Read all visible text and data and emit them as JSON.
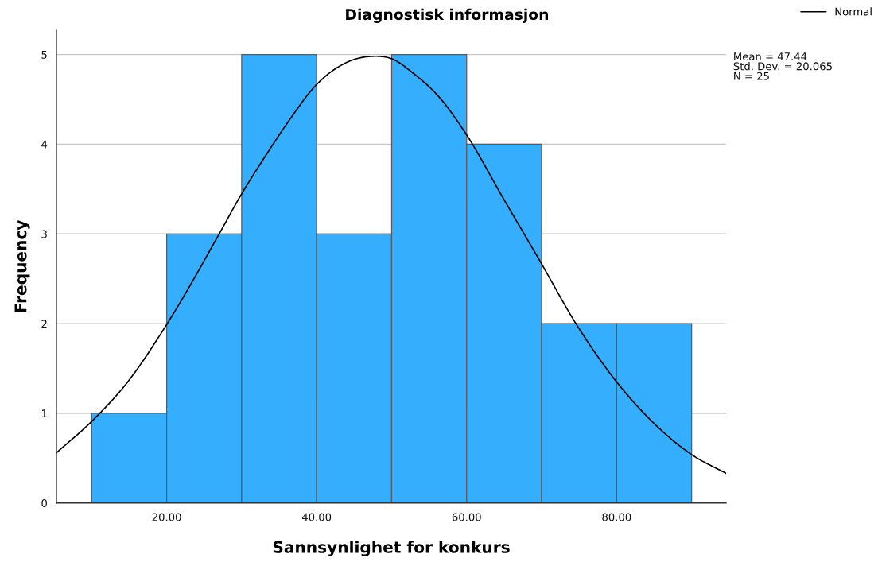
{
  "chart_data": {
    "type": "histogram",
    "title": "Diagnostisk informasjon",
    "xlabel": "Sannsynlighet for konkurs",
    "ylabel": "Frequency",
    "bins": [
      10,
      20,
      30,
      40,
      50,
      60,
      70,
      80,
      90
    ],
    "values": [
      1,
      3,
      5,
      3,
      5,
      4,
      2,
      2
    ],
    "color": "#35aefd",
    "series": [
      {
        "name": "Normal",
        "type": "line",
        "color": "#000000",
        "x": [
          5.3,
          10.0,
          14.8,
          20.0,
          27.2,
          29.6,
          33.1,
          36.7,
          39.7,
          43.7,
          47.3,
          50.1,
          52.9,
          56.5,
          59.8,
          65.0,
          69.9,
          74.5,
          80.1,
          85.2,
          90.0,
          94.6
        ],
        "values": [
          0.56,
          0.91,
          1.35,
          1.99,
          3.03,
          3.39,
          3.86,
          4.31,
          4.64,
          4.9,
          4.98,
          4.95,
          4.79,
          4.51,
          4.13,
          3.38,
          2.68,
          2.01,
          1.34,
          0.87,
          0.54,
          0.33
        ]
      }
    ],
    "xlim": [
      5.3,
      94.6
    ],
    "ylim": [
      0,
      5.27
    ],
    "xticks": [
      {
        "value": 20,
        "label": "20.00"
      },
      {
        "value": 40,
        "label": "40.00"
      },
      {
        "value": 60,
        "label": "60.00"
      },
      {
        "value": 80,
        "label": "80.00"
      }
    ],
    "yticks": [
      0,
      1,
      2,
      3,
      4,
      5
    ],
    "grid": "y",
    "legend": "top right",
    "annotations": [
      "Mean = 47.44",
      "Std. Dev. = 20.065",
      "N = 25"
    ]
  }
}
